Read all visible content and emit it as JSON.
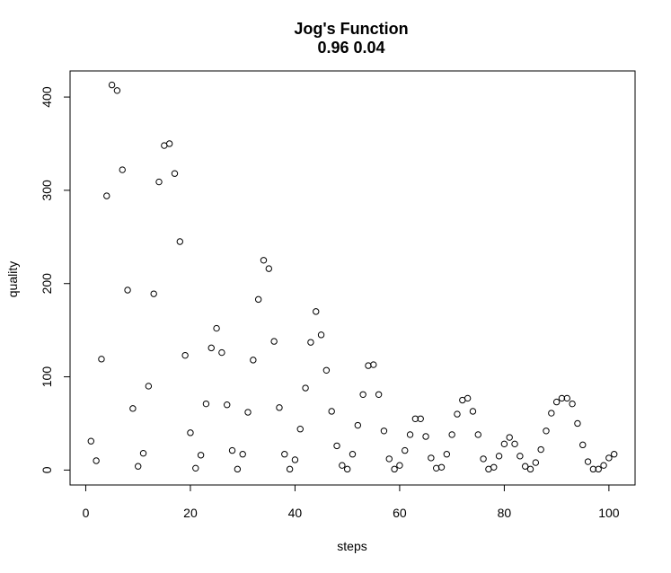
{
  "chart_data": {
    "type": "scatter",
    "title": "Jog's Function",
    "subtitle": "0.96 0.04",
    "xlabel": "steps",
    "ylabel": "quality",
    "xlim": [
      -3,
      105
    ],
    "ylim": [
      -16,
      428
    ],
    "xticks": [
      0,
      20,
      40,
      60,
      80,
      100
    ],
    "yticks": [
      0,
      100,
      200,
      300,
      400
    ],
    "grid": false,
    "legend": "none",
    "points": [
      {
        "x": 1,
        "y": 31
      },
      {
        "x": 2,
        "y": 10
      },
      {
        "x": 3,
        "y": 119
      },
      {
        "x": 4,
        "y": 294
      },
      {
        "x": 5,
        "y": 413
      },
      {
        "x": 6,
        "y": 407
      },
      {
        "x": 7,
        "y": 322
      },
      {
        "x": 8,
        "y": 193
      },
      {
        "x": 9,
        "y": 66
      },
      {
        "x": 10,
        "y": 4
      },
      {
        "x": 11,
        "y": 18
      },
      {
        "x": 12,
        "y": 90
      },
      {
        "x": 13,
        "y": 189
      },
      {
        "x": 14,
        "y": 309
      },
      {
        "x": 15,
        "y": 348
      },
      {
        "x": 16,
        "y": 350
      },
      {
        "x": 17,
        "y": 318
      },
      {
        "x": 18,
        "y": 245
      },
      {
        "x": 19,
        "y": 123
      },
      {
        "x": 20,
        "y": 40
      },
      {
        "x": 21,
        "y": 2
      },
      {
        "x": 22,
        "y": 16
      },
      {
        "x": 23,
        "y": 71
      },
      {
        "x": 24,
        "y": 131
      },
      {
        "x": 25,
        "y": 152
      },
      {
        "x": 26,
        "y": 126
      },
      {
        "x": 27,
        "y": 70
      },
      {
        "x": 28,
        "y": 21
      },
      {
        "x": 29,
        "y": 1
      },
      {
        "x": 30,
        "y": 17
      },
      {
        "x": 31,
        "y": 62
      },
      {
        "x": 32,
        "y": 118
      },
      {
        "x": 33,
        "y": 183
      },
      {
        "x": 34,
        "y": 225
      },
      {
        "x": 35,
        "y": 216
      },
      {
        "x": 36,
        "y": 138
      },
      {
        "x": 37,
        "y": 67
      },
      {
        "x": 38,
        "y": 17
      },
      {
        "x": 39,
        "y": 1
      },
      {
        "x": 40,
        "y": 11
      },
      {
        "x": 41,
        "y": 44
      },
      {
        "x": 42,
        "y": 88
      },
      {
        "x": 43,
        "y": 137
      },
      {
        "x": 44,
        "y": 170
      },
      {
        "x": 45,
        "y": 145
      },
      {
        "x": 46,
        "y": 107
      },
      {
        "x": 47,
        "y": 63
      },
      {
        "x": 48,
        "y": 26
      },
      {
        "x": 49,
        "y": 5
      },
      {
        "x": 50,
        "y": 1
      },
      {
        "x": 51,
        "y": 17
      },
      {
        "x": 52,
        "y": 48
      },
      {
        "x": 53,
        "y": 81
      },
      {
        "x": 54,
        "y": 112
      },
      {
        "x": 55,
        "y": 113
      },
      {
        "x": 56,
        "y": 81
      },
      {
        "x": 57,
        "y": 42
      },
      {
        "x": 58,
        "y": 12
      },
      {
        "x": 59,
        "y": 1
      },
      {
        "x": 60,
        "y": 5
      },
      {
        "x": 61,
        "y": 21
      },
      {
        "x": 62,
        "y": 38
      },
      {
        "x": 63,
        "y": 55
      },
      {
        "x": 64,
        "y": 55
      },
      {
        "x": 65,
        "y": 36
      },
      {
        "x": 66,
        "y": 13
      },
      {
        "x": 67,
        "y": 2
      },
      {
        "x": 68,
        "y": 3
      },
      {
        "x": 69,
        "y": 17
      },
      {
        "x": 70,
        "y": 38
      },
      {
        "x": 71,
        "y": 60
      },
      {
        "x": 72,
        "y": 75
      },
      {
        "x": 73,
        "y": 77
      },
      {
        "x": 74,
        "y": 63
      },
      {
        "x": 75,
        "y": 38
      },
      {
        "x": 76,
        "y": 12
      },
      {
        "x": 77,
        "y": 1
      },
      {
        "x": 78,
        "y": 3
      },
      {
        "x": 79,
        "y": 15
      },
      {
        "x": 80,
        "y": 28
      },
      {
        "x": 81,
        "y": 35
      },
      {
        "x": 82,
        "y": 28
      },
      {
        "x": 83,
        "y": 15
      },
      {
        "x": 84,
        "y": 4
      },
      {
        "x": 85,
        "y": 1
      },
      {
        "x": 86,
        "y": 8
      },
      {
        "x": 87,
        "y": 22
      },
      {
        "x": 88,
        "y": 42
      },
      {
        "x": 89,
        "y": 61
      },
      {
        "x": 90,
        "y": 73
      },
      {
        "x": 91,
        "y": 77
      },
      {
        "x": 92,
        "y": 77
      },
      {
        "x": 93,
        "y": 71
      },
      {
        "x": 94,
        "y": 50
      },
      {
        "x": 95,
        "y": 27
      },
      {
        "x": 96,
        "y": 9
      },
      {
        "x": 97,
        "y": 1
      },
      {
        "x": 98,
        "y": 1
      },
      {
        "x": 99,
        "y": 5
      },
      {
        "x": 100,
        "y": 13
      },
      {
        "x": 101,
        "y": 17
      }
    ]
  }
}
